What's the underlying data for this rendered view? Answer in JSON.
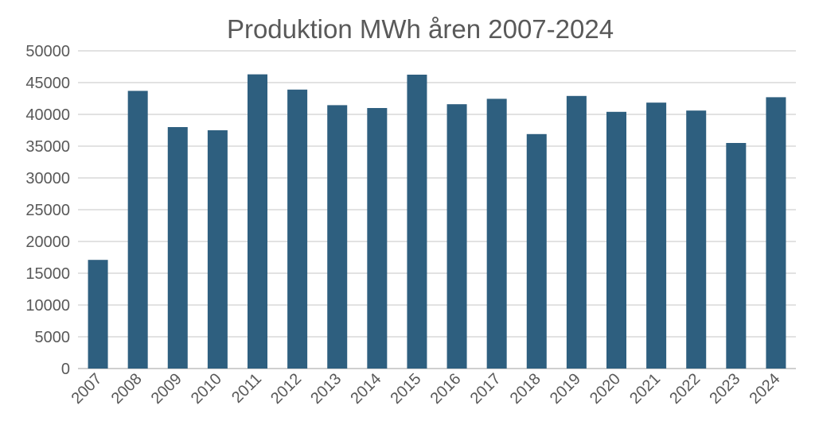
{
  "chart_data": {
    "type": "bar",
    "title": "Produktion MWh åren 2007-2024",
    "xlabel": "",
    "ylabel": "",
    "ylim": [
      0,
      50000
    ],
    "yticks": [
      0,
      5000,
      10000,
      15000,
      20000,
      25000,
      30000,
      35000,
      40000,
      45000,
      50000
    ],
    "grid": true,
    "legend": "none",
    "bar_color": "#2e5f7f",
    "categories": [
      "2007",
      "2008",
      "2009",
      "2010",
      "2011",
      "2012",
      "2013",
      "2014",
      "2015",
      "2016",
      "2017",
      "2018",
      "2019",
      "2020",
      "2021",
      "2022",
      "2023",
      "2024"
    ],
    "values": [
      17100,
      43700,
      38000,
      37500,
      46300,
      43900,
      41450,
      41000,
      46250,
      41600,
      42450,
      36900,
      42900,
      40400,
      41850,
      40600,
      35500,
      42700
    ]
  }
}
